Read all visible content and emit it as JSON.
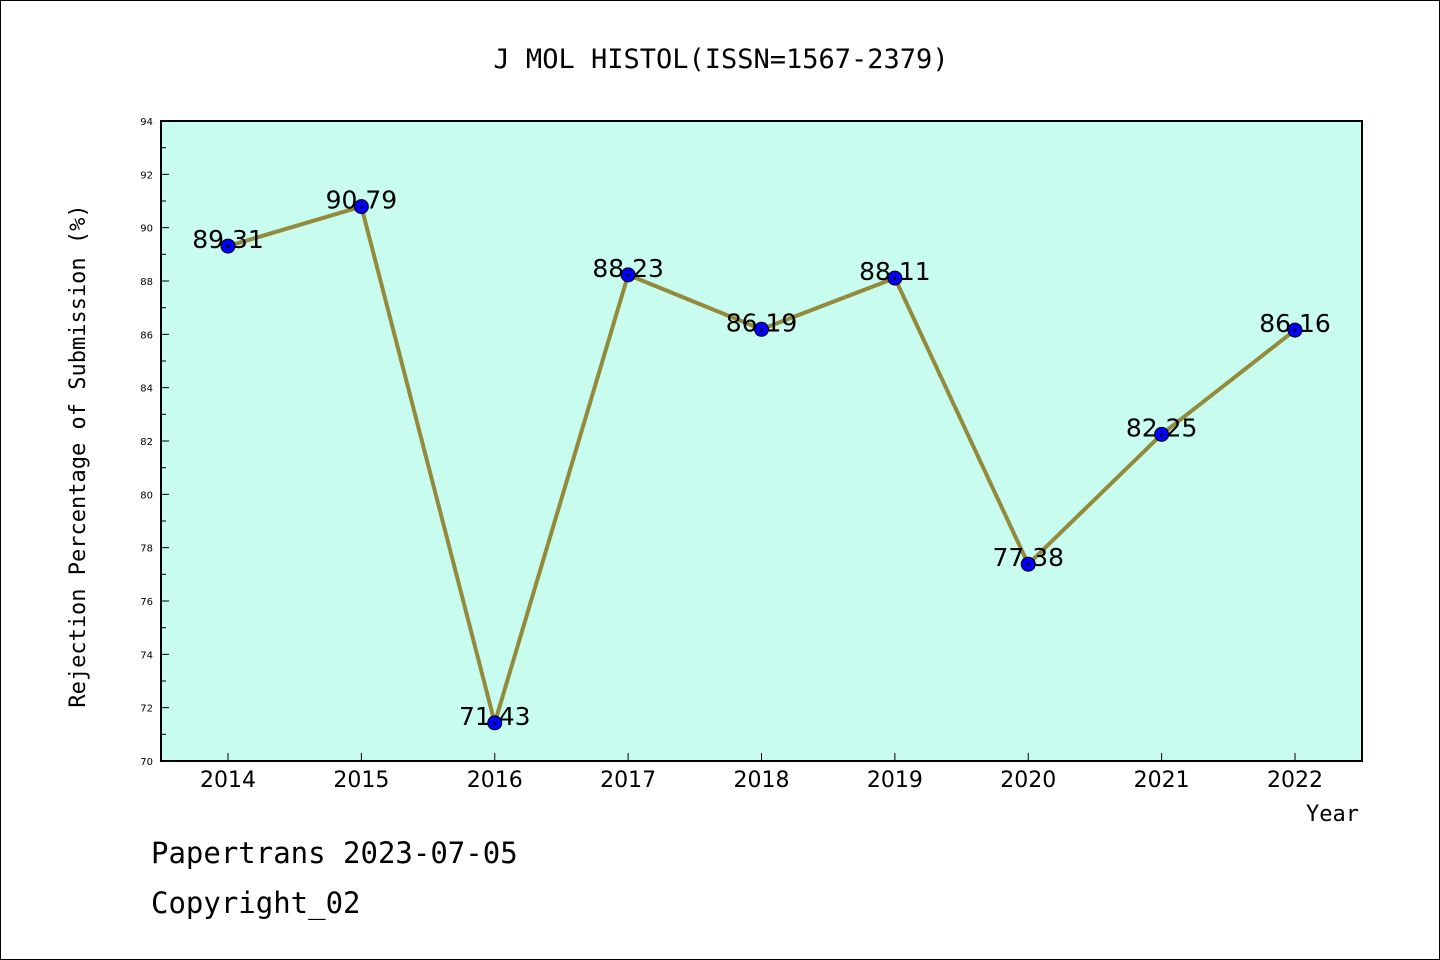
{
  "chart_data": {
    "type": "line",
    "title": "J MOL HISTOL(ISSN=1567-2379)",
    "xlabel": "Year",
    "ylabel": "Rejection Percentage of Submission (%)",
    "categories": [
      "2014",
      "2015",
      "2016",
      "2017",
      "2018",
      "2019",
      "2020",
      "2021",
      "2022"
    ],
    "series": [
      {
        "values": [
          89.31,
          90.79,
          71.43,
          88.23,
          86.19,
          88.11,
          77.38,
          82.25,
          86.16
        ],
        "data_labels": [
          "89.31",
          "90.79",
          "71.43",
          "88.23",
          "86.19",
          "88.11",
          "77.38",
          "82.25",
          "86.16"
        ]
      }
    ],
    "ylim": [
      70,
      94
    ],
    "yticks": [
      "70",
      "72",
      "74",
      "76",
      "78",
      "80",
      "82",
      "84",
      "86",
      "88",
      "90",
      "92",
      "94"
    ],
    "grid": false,
    "colors": {
      "plot_background": "#c8fcee",
      "line": "#938a3c",
      "marker": "#0000ff"
    }
  },
  "footer": {
    "line1": "Papertrans 2023-07-05",
    "line2": "Copyright_02"
  }
}
